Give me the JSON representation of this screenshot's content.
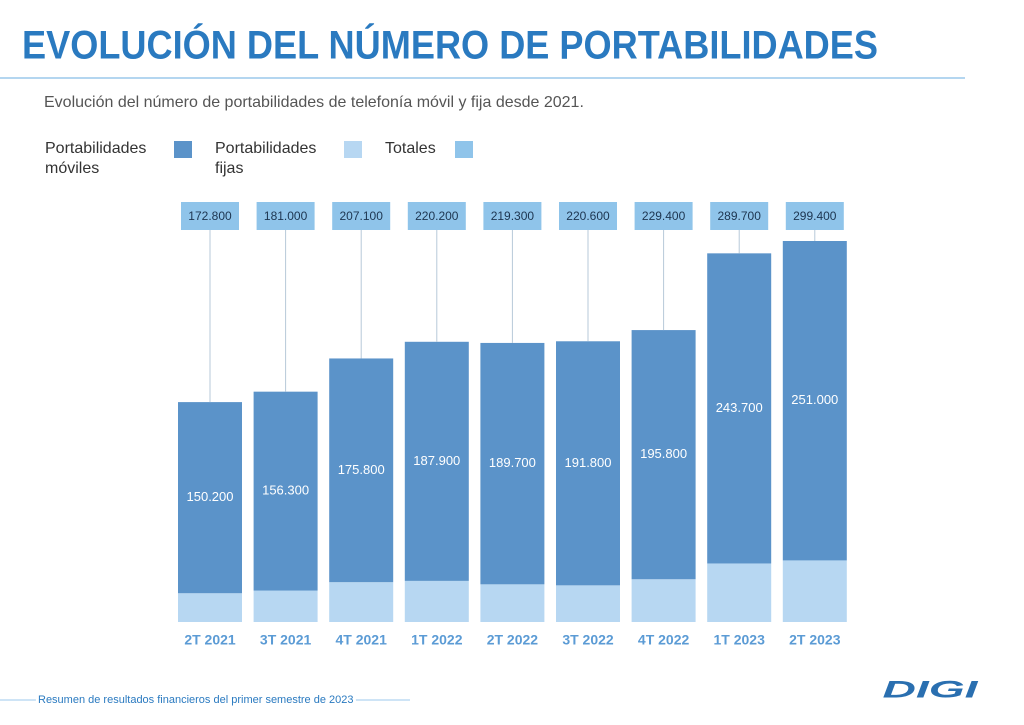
{
  "chart_data": {
    "type": "stacked_bar",
    "title": "EVOLUCIÓN DEL NÚMERO DE PORTABILIDADES",
    "subtitle": "Evolución del número de portabilidades de telefonía móvil y fija desde 2021.",
    "footer": "Resumen de resultados financieros del primer semestre de 2023",
    "logo": "DIGI",
    "categories": [
      "2T 2021",
      "3T 2021",
      "4T 2021",
      "1T 2022",
      "2T 2022",
      "3T 2022",
      "4T 2022",
      "1T 2023",
      "2T 2023"
    ],
    "series": [
      {
        "name": "Portabilidades móviles",
        "color": "#5b93c9",
        "values": [
          150200,
          156300,
          175800,
          187900,
          189700,
          191800,
          195800,
          243700,
          251000
        ],
        "value_labels": [
          "150.200",
          "156.300",
          "175.800",
          "187.900",
          "189.700",
          "191.800",
          "195.800",
          "243.700",
          "251.000"
        ]
      },
      {
        "name": "Portabilidades fijas",
        "color": "#b7d7f2",
        "values": [
          22600,
          24700,
          31300,
          32300,
          29600,
          28800,
          33600,
          46000,
          48400
        ]
      },
      {
        "name": "Totales",
        "color": "#8fc4ea",
        "values": [
          172800,
          181000,
          207100,
          220200,
          219300,
          220600,
          229400,
          289700,
          299400
        ],
        "value_labels": [
          "172.800",
          "181.000",
          "207.100",
          "220.200",
          "219.300",
          "220.600",
          "229.400",
          "289.700",
          "299.400"
        ]
      }
    ]
  }
}
